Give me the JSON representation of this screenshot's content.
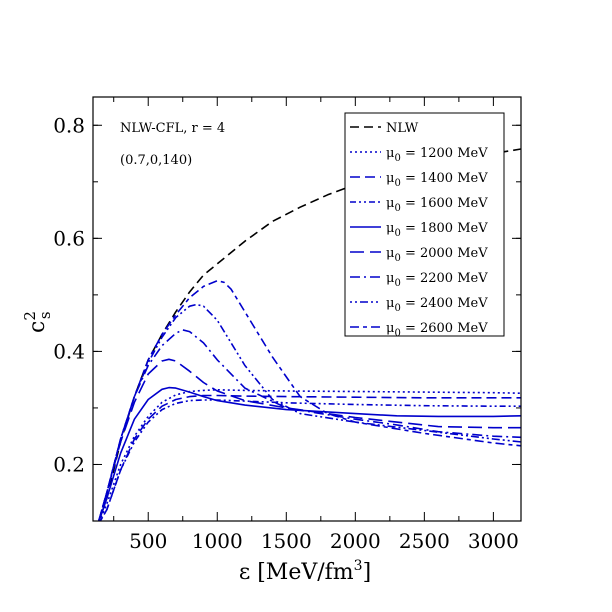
{
  "chart_data": {
    "type": "line",
    "xlabel": "ε [MeV/fm³]",
    "xlabel_main": "ε [MeV/fm",
    "xlabel_sup": "3",
    "xlabel_end": "]",
    "ylabel_main": "c",
    "ylabel_sup": "2",
    "ylabel_sub": "s",
    "xlim": [
      100,
      3200
    ],
    "ylim": [
      0.1,
      0.85
    ],
    "x_ticks": [
      500,
      1000,
      1500,
      2000,
      2500,
      3000
    ],
    "y_ticks": [
      0.2,
      0.4,
      0.6,
      0.8
    ],
    "y_tick_labels": [
      "0.2",
      "0.4",
      "0.6",
      "0.8"
    ],
    "annotations": [
      "NLW-CFL, r = 4",
      "(0.7,0,140)"
    ],
    "legend_position": "top-right",
    "series": [
      {
        "name": "NLW",
        "legend_main": "NLW",
        "legend_sub": "",
        "legend_rest": "",
        "color": "#000000",
        "dash": "9,5",
        "x": [
          130,
          200,
          300,
          400,
          500,
          600,
          700,
          800,
          900,
          1000,
          1200,
          1400,
          1600,
          1800,
          2000,
          2300,
          2500,
          2700,
          3000,
          3200
        ],
        "y": [
          0.09,
          0.14,
          0.24,
          0.32,
          0.385,
          0.43,
          0.47,
          0.505,
          0.535,
          0.555,
          0.595,
          0.63,
          0.655,
          0.677,
          0.695,
          0.715,
          0.727,
          0.737,
          0.75,
          0.758
        ]
      },
      {
        "name": "μ0 = 1200 MeV",
        "legend_main": "μ",
        "legend_sub": "0",
        "legend_rest": " = 1200 MeV",
        "color": "#0000cc",
        "dash": "2,3",
        "x": [
          130,
          200,
          300,
          400,
          500,
          600,
          700,
          800,
          900,
          1000,
          1200,
          1500,
          2000,
          2500,
          3000,
          3200
        ],
        "y": [
          0.09,
          0.13,
          0.2,
          0.25,
          0.285,
          0.31,
          0.323,
          0.329,
          0.331,
          0.332,
          0.331,
          0.33,
          0.329,
          0.328,
          0.327,
          0.326
        ]
      },
      {
        "name": "μ0 = 1400 MeV",
        "legend_main": "μ",
        "legend_sub": "0",
        "legend_rest": " = 1400 MeV",
        "color": "#0000cc",
        "dash": "10,5",
        "x": [
          130,
          200,
          300,
          400,
          500,
          600,
          700,
          800,
          900,
          1000,
          1200,
          1500,
          2000,
          2500,
          3000,
          3200
        ],
        "y": [
          0.09,
          0.12,
          0.19,
          0.245,
          0.28,
          0.303,
          0.315,
          0.32,
          0.322,
          0.322,
          0.321,
          0.32,
          0.319,
          0.318,
          0.318,
          0.318
        ]
      },
      {
        "name": "μ0 = 1600 MeV",
        "legend_main": "μ",
        "legend_sub": "0",
        "legend_rest": " = 1600 MeV",
        "color": "#0000cc",
        "dash": "6,3,2,3,2,3",
        "x": [
          130,
          200,
          300,
          400,
          500,
          600,
          700,
          800,
          900,
          1000,
          1200,
          1500,
          2000,
          2500,
          3000,
          3200
        ],
        "y": [
          0.09,
          0.12,
          0.19,
          0.24,
          0.275,
          0.297,
          0.308,
          0.313,
          0.314,
          0.314,
          0.312,
          0.309,
          0.306,
          0.304,
          0.303,
          0.303
        ]
      },
      {
        "name": "μ0 = 1800 MeV",
        "legend_main": "μ",
        "legend_sub": "0",
        "legend_rest": " = 1800 MeV",
        "color": "#0000cc",
        "dash": "",
        "x": [
          130,
          200,
          300,
          400,
          500,
          600,
          650,
          700,
          800,
          900,
          1000,
          1200,
          1500,
          2000,
          2300,
          2600,
          3000,
          3200
        ],
        "y": [
          0.09,
          0.14,
          0.22,
          0.28,
          0.315,
          0.333,
          0.336,
          0.335,
          0.328,
          0.32,
          0.313,
          0.305,
          0.297,
          0.29,
          0.286,
          0.285,
          0.285,
          0.286
        ]
      },
      {
        "name": "μ0 = 2000 MeV",
        "legend_main": "μ",
        "legend_sub": "0",
        "legend_rest": " = 2000 MeV",
        "color": "#0000cc",
        "dash": "14,6",
        "x": [
          130,
          200,
          300,
          400,
          500,
          600,
          650,
          700,
          800,
          900,
          1000,
          1200,
          1500,
          2000,
          2300,
          2600,
          3000,
          3200
        ],
        "y": [
          0.09,
          0.15,
          0.24,
          0.31,
          0.36,
          0.383,
          0.386,
          0.383,
          0.365,
          0.345,
          0.33,
          0.313,
          0.3,
          0.283,
          0.275,
          0.267,
          0.265,
          0.265
        ]
      },
      {
        "name": "μ0 = 2200 MeV",
        "legend_main": "μ",
        "legend_sub": "0",
        "legend_rest": " = 2200 MeV",
        "color": "#0000cc",
        "dash": "10,4,2,4",
        "x": [
          130,
          200,
          300,
          400,
          500,
          600,
          700,
          750,
          800,
          900,
          1000,
          1200,
          1500,
          2000,
          2300,
          2600,
          3000,
          3200
        ],
        "y": [
          0.09,
          0.15,
          0.245,
          0.32,
          0.375,
          0.41,
          0.432,
          0.438,
          0.435,
          0.415,
          0.385,
          0.335,
          0.3,
          0.28,
          0.27,
          0.258,
          0.25,
          0.248
        ]
      },
      {
        "name": "μ0 = 2400 MeV",
        "legend_main": "μ",
        "legend_sub": "0",
        "legend_rest": " = 2400 MeV",
        "color": "#0000cc",
        "dash": "2,3,2,3,8,3",
        "x": [
          130,
          200,
          300,
          400,
          500,
          600,
          700,
          800,
          850,
          900,
          1000,
          1100,
          1200,
          1400,
          1600,
          2000,
          2500,
          3000,
          3200
        ],
        "y": [
          0.09,
          0.15,
          0.245,
          0.32,
          0.38,
          0.425,
          0.46,
          0.48,
          0.483,
          0.48,
          0.455,
          0.415,
          0.375,
          0.315,
          0.29,
          0.275,
          0.26,
          0.245,
          0.24
        ]
      },
      {
        "name": "μ0 = 2600 MeV",
        "legend_main": "μ",
        "legend_sub": "0",
        "legend_rest": " = 2600 MeV",
        "color": "#0000cc",
        "dash": "9,4,4,4",
        "x": [
          130,
          200,
          300,
          400,
          500,
          600,
          700,
          800,
          900,
          1000,
          1050,
          1100,
          1200,
          1400,
          1600,
          1800,
          2000,
          2500,
          3000,
          3200
        ],
        "y": [
          0.09,
          0.15,
          0.245,
          0.32,
          0.385,
          0.43,
          0.465,
          0.495,
          0.515,
          0.525,
          0.522,
          0.51,
          0.47,
          0.39,
          0.32,
          0.29,
          0.275,
          0.255,
          0.238,
          0.233
        ]
      }
    ]
  }
}
